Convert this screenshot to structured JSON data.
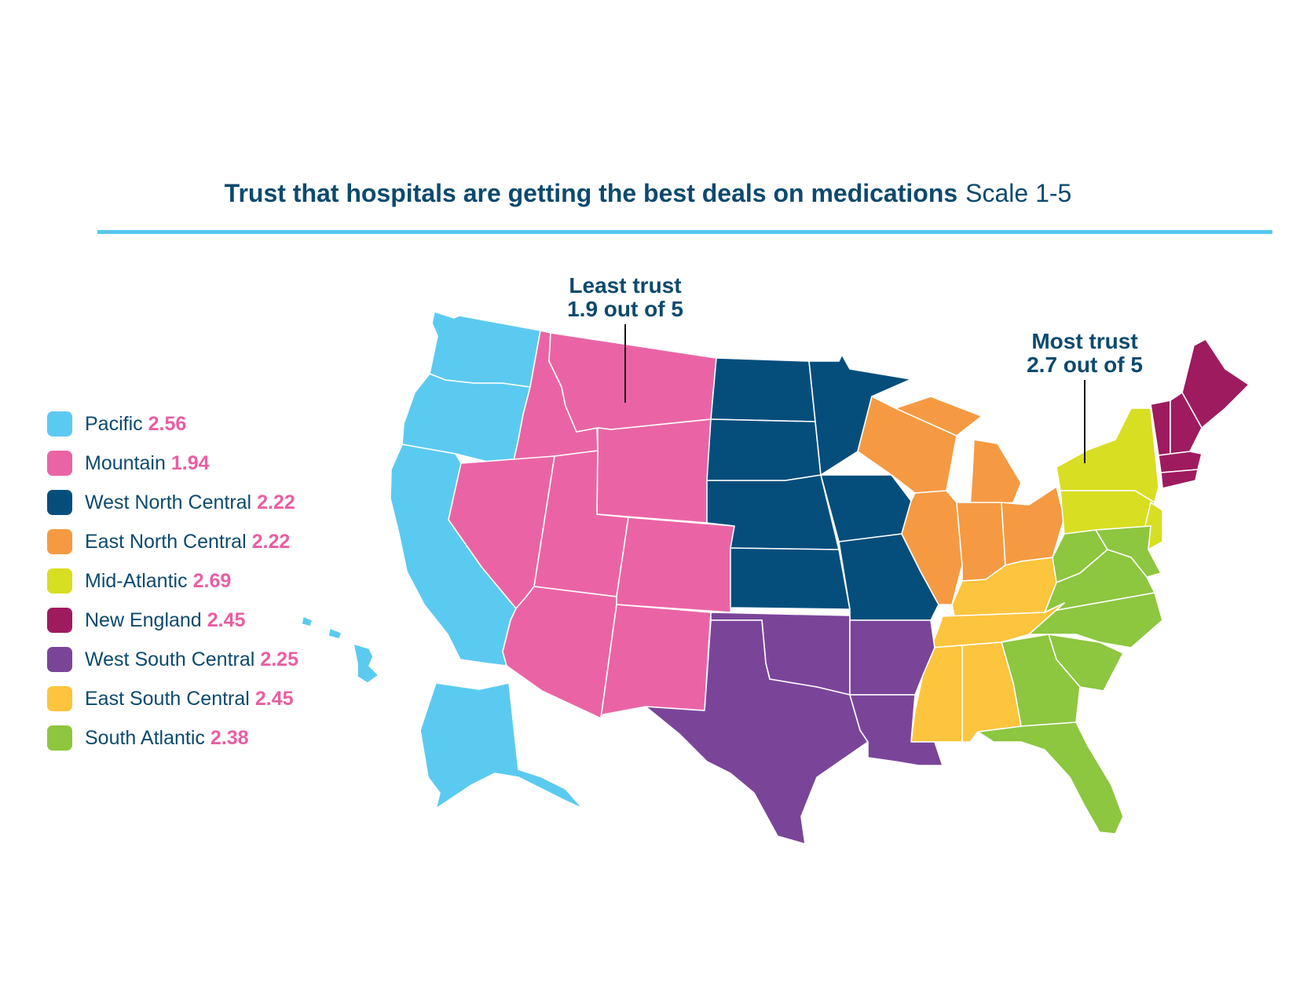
{
  "title": {
    "main": "Trust that hospitals are getting the best deals on medications",
    "scale": "Scale 1-5"
  },
  "callouts": {
    "least": {
      "label": "Least trust",
      "value": "1.9 out of 5"
    },
    "most": {
      "label": "Most trust",
      "value": "2.7 out of 5"
    }
  },
  "value_color": "#ea5ea2",
  "legend": [
    {
      "name": "Pacific",
      "value": "2.56",
      "color": "#5bcaf1"
    },
    {
      "name": "Mountain",
      "value": "1.94",
      "color": "#ea64a5"
    },
    {
      "name": "West North Central",
      "value": "2.22",
      "color": "#054e7c"
    },
    {
      "name": "East North Central",
      "value": "2.22",
      "color": "#f59a42"
    },
    {
      "name": "Mid-Atlantic",
      "value": "2.69",
      "color": "#d8de22"
    },
    {
      "name": "New England",
      "value": "2.45",
      "color": "#9e1b5f"
    },
    {
      "name": "West South Central",
      "value": "2.25",
      "color": "#7a4599"
    },
    {
      "name": "East South Central",
      "value": "2.45",
      "color": "#fdc43d"
    },
    {
      "name": "South Atlantic",
      "value": "2.38",
      "color": "#8dc63f"
    }
  ]
}
